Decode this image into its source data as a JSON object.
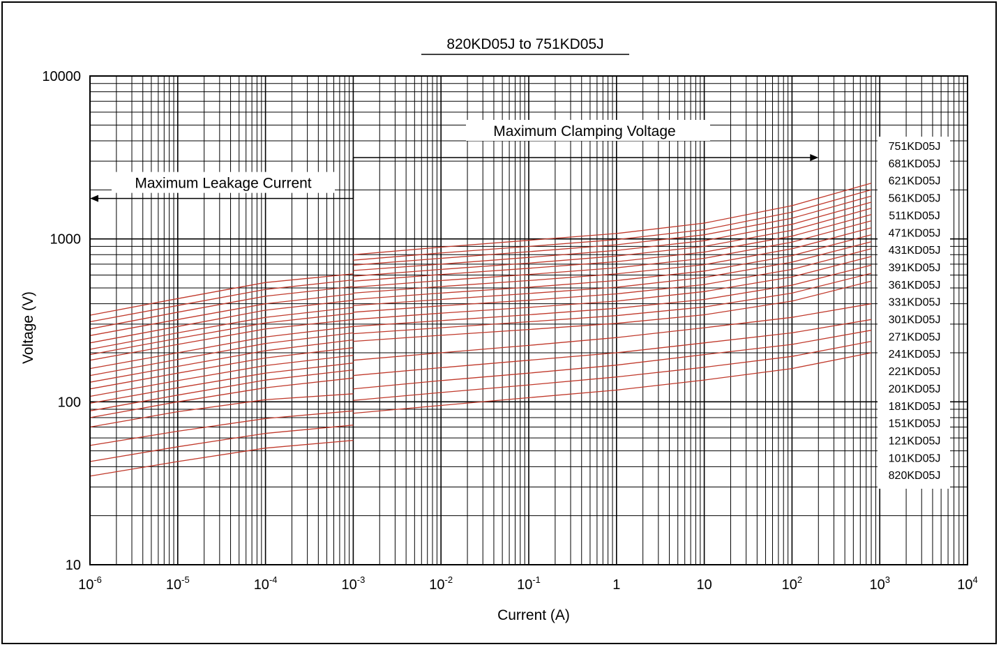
{
  "chart_data": {
    "type": "line",
    "title": "820KD05J to 751KD05J",
    "xlabel": "Current (A)",
    "ylabel": "Voltage (V)",
    "x_scale": "log",
    "y_scale": "log",
    "xlim": [
      1e-06,
      10000
    ],
    "ylim": [
      10,
      10000
    ],
    "grid": true,
    "x_ticks": [
      {
        "value": 1e-06,
        "base": "10",
        "exp": "-6"
      },
      {
        "value": 1e-05,
        "base": "10",
        "exp": "-5"
      },
      {
        "value": 0.0001,
        "base": "10",
        "exp": "-4"
      },
      {
        "value": 0.001,
        "base": "10",
        "exp": "-3"
      },
      {
        "value": 0.01,
        "base": "10",
        "exp": "-2"
      },
      {
        "value": 0.1,
        "base": "10",
        "exp": "-1"
      },
      {
        "value": 1,
        "base": "1",
        "exp": ""
      },
      {
        "value": 10,
        "base": "10",
        "exp": ""
      },
      {
        "value": 100,
        "base": "10",
        "exp": "2"
      },
      {
        "value": 1000,
        "base": "10",
        "exp": "3"
      },
      {
        "value": 10000,
        "base": "10",
        "exp": "4"
      }
    ],
    "y_ticks": [
      {
        "value": 10,
        "label": "10"
      },
      {
        "value": 100,
        "label": "100"
      },
      {
        "value": 1000,
        "label": "1000"
      },
      {
        "value": 10000,
        "label": "10000"
      }
    ],
    "annotations": {
      "leakage": {
        "label": "Maximum Leakage Current",
        "arrow_from": 0.001,
        "arrow_to": 1e-06,
        "at_voltage": 2200
      },
      "clamping": {
        "label": "Maximum Clamping Voltage",
        "arrow_from": 0.001,
        "arrow_to": 200,
        "at_voltage": 4000
      }
    },
    "leakage_x": [
      1e-06,
      1e-05,
      0.0001,
      0.001
    ],
    "clamp_x": [
      0.001,
      0.01,
      0.1,
      1,
      10,
      100,
      800
    ],
    "series": [
      {
        "name": "751KD05J",
        "leakage": [
          340,
          430,
          540,
          610
        ],
        "clamp": [
          800,
          890,
          980,
          1080,
          1250,
          1600,
          2200
        ]
      },
      {
        "name": "681KD05J",
        "leakage": [
          310,
          390,
          490,
          560
        ],
        "clamp": [
          740,
          820,
          900,
          990,
          1140,
          1460,
          2000
        ]
      },
      {
        "name": "621KD05J",
        "leakage": [
          280,
          355,
          445,
          510
        ],
        "clamp": [
          690,
          760,
          835,
          920,
          1060,
          1340,
          1830
        ]
      },
      {
        "name": "561KD05J",
        "leakage": [
          255,
          320,
          400,
          460
        ],
        "clamp": [
          640,
          700,
          770,
          850,
          975,
          1230,
          1680
        ]
      },
      {
        "name": "511KD05J",
        "leakage": [
          230,
          290,
          365,
          420
        ],
        "clamp": [
          590,
          650,
          710,
          785,
          900,
          1130,
          1540
        ]
      },
      {
        "name": "471KD05J",
        "leakage": [
          210,
          265,
          330,
          380
        ],
        "clamp": [
          550,
          605,
          660,
          725,
          830,
          1040,
          1410
        ]
      },
      {
        "name": "431KD05J",
        "leakage": [
          195,
          245,
          305,
          350
        ],
        "clamp": [
          505,
          555,
          605,
          665,
          760,
          955,
          1290
        ]
      },
      {
        "name": "391KD05J",
        "leakage": [
          180,
          225,
          280,
          320
        ],
        "clamp": [
          465,
          510,
          555,
          610,
          695,
          870,
          1170
        ]
      },
      {
        "name": "361KD05J",
        "leakage": [
          160,
          200,
          250,
          290
        ],
        "clamp": [
          425,
          465,
          505,
          555,
          635,
          790,
          1060
        ]
      },
      {
        "name": "331KD05J",
        "leakage": [
          145,
          182,
          228,
          265
        ],
        "clamp": [
          390,
          425,
          462,
          505,
          580,
          720,
          960
        ]
      },
      {
        "name": "301KD05J",
        "leakage": [
          132,
          165,
          206,
          240
        ],
        "clamp": [
          355,
          388,
          420,
          460,
          525,
          650,
          870
        ]
      },
      {
        "name": "271KD05J",
        "leakage": [
          120,
          150,
          186,
          215
        ],
        "clamp": [
          320,
          350,
          380,
          415,
          475,
          585,
          780
        ]
      },
      {
        "name": "241KD05J",
        "leakage": [
          108,
          135,
          167,
          193
        ],
        "clamp": [
          290,
          315,
          342,
          375,
          425,
          520,
          690
        ]
      },
      {
        "name": "221KD05J",
        "leakage": [
          98,
          122,
          150,
          173
        ],
        "clamp": [
          262,
          285,
          310,
          338,
          382,
          465,
          615
        ]
      },
      {
        "name": "201KD05J",
        "leakage": [
          88,
          110,
          136,
          157
        ],
        "clamp": [
          235,
          256,
          278,
          303,
          342,
          415,
          550
        ]
      },
      {
        "name": "181KD05J",
        "leakage": [
          80,
          100,
          122,
          140
        ],
        "clamp": [
          180,
          200,
          222,
          248,
          285,
          330,
          400
        ]
      },
      {
        "name": "151KD05J",
        "leakage": [
          70,
          87,
          103,
          112
        ],
        "clamp": [
          145,
          162,
          180,
          200,
          230,
          265,
          320
        ]
      },
      {
        "name": "121KD05J",
        "leakage": [
          54,
          66,
          79,
          88
        ],
        "clamp": [
          120,
          135,
          150,
          168,
          195,
          225,
          275
        ]
      },
      {
        "name": "101KD05J",
        "leakage": [
          43,
          53,
          64,
          72
        ],
        "clamp": [
          102,
          114,
          127,
          142,
          163,
          190,
          235
        ]
      },
      {
        "name": "820KD05J",
        "leakage": [
          35,
          43,
          52,
          58
        ],
        "clamp": [
          85,
          95,
          106,
          118,
          136,
          160,
          200
        ]
      }
    ],
    "line_color": "#c0392b"
  }
}
